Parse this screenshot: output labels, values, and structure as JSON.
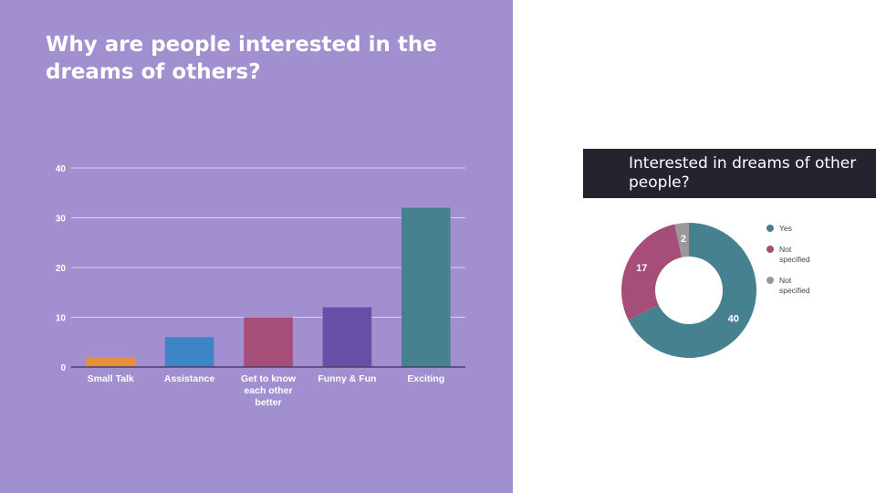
{
  "slide": {
    "title": "Why are people interested in the dreams of others?"
  },
  "chart_data": [
    {
      "type": "bar",
      "categories": [
        "Small Talk",
        "Assistance",
        "Get to know each other better",
        "Funny & Fun",
        "Exciting"
      ],
      "category_lines": [
        [
          "Small Talk"
        ],
        [
          "Assistance"
        ],
        [
          "Get to know",
          "each other",
          "better"
        ],
        [
          "Funny & Fun"
        ],
        [
          "Exciting"
        ]
      ],
      "values": [
        2,
        6,
        10,
        12,
        32
      ],
      "colors": [
        "#e8913c",
        "#3d85c6",
        "#a64d79",
        "#674ea7",
        "#45818e"
      ],
      "ylim": [
        0,
        40
      ],
      "yticks": [
        0,
        10,
        20,
        30,
        40
      ],
      "grid": true,
      "title": "",
      "xlabel": "",
      "ylabel": ""
    },
    {
      "type": "pie",
      "title": "Interested in dreams of other people?",
      "donut": true,
      "slices": [
        {
          "label": "Yes",
          "value": 40,
          "color": "#45818e"
        },
        {
          "label": "Not specified",
          "value": 17,
          "color": "#a64d79"
        },
        {
          "label": "Not specified",
          "value": 2,
          "color": "#999999"
        }
      ],
      "legend": "right"
    }
  ]
}
